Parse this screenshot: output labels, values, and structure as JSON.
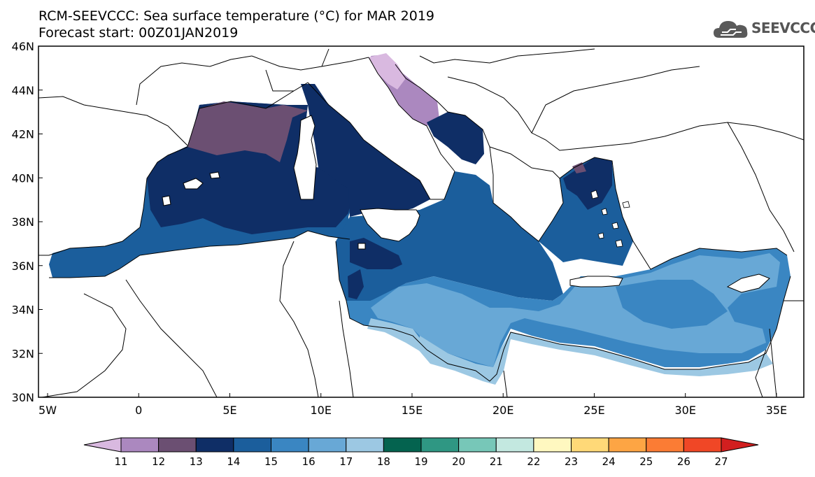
{
  "header": {
    "title_line1": "RCM-SEEVCCC: Sea surface temperature (°C) for MAR 2019",
    "title_line2": "Forecast start: 00Z01JAN2019"
  },
  "logo": {
    "text": "SEEVCCC",
    "icon": "cloud-logo-icon"
  },
  "map": {
    "lon_ticks": [
      "5W",
      "0",
      "5E",
      "10E",
      "15E",
      "20E",
      "25E",
      "30E",
      "35E"
    ],
    "lat_ticks": [
      "46N",
      "44N",
      "42N",
      "40N",
      "38N",
      "36N",
      "34N",
      "32N",
      "30N"
    ],
    "lon_range": [
      -5.5,
      36.5
    ],
    "lat_range": [
      30,
      46
    ]
  },
  "colorbar": {
    "labels": [
      "11",
      "12",
      "13",
      "14",
      "15",
      "16",
      "17",
      "18",
      "19",
      "20",
      "21",
      "22",
      "23",
      "24",
      "25",
      "26",
      "27"
    ],
    "colors": [
      "#d9b9e0",
      "#ab88bf",
      "#6b4f72",
      "#0f2e66",
      "#1b5e9c",
      "#3a86c2",
      "#68a8d6",
      "#9cc8e3",
      "#04634f",
      "#2f9783",
      "#77c7b8",
      "#c3e8e0",
      "#fff8c0",
      "#ffd978",
      "#fda544",
      "#fb7c34",
      "#f04726",
      "#d21f1f"
    ]
  }
}
